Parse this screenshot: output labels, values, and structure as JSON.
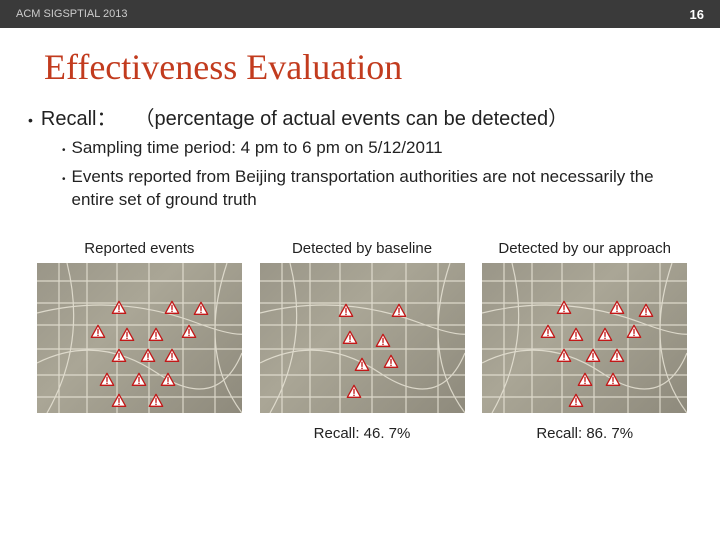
{
  "header": {
    "conference": "ACM SIGSPTIAL 2013",
    "page_number": "16"
  },
  "title": "Effectiveness Evaluation",
  "recall": {
    "label": "Recall：",
    "description": "（percentage of actual events can be detected）"
  },
  "sub_bullets": [
    "Sampling time period: 4 pm to 6 pm on 5/12/2011",
    "Events reported from Beijing transportation authorities are not necessarily the entire set of ground truth"
  ],
  "maps": [
    {
      "label": "Reported events",
      "recall_value": "",
      "markers": [
        {
          "x": 40,
          "y": 30
        },
        {
          "x": 66,
          "y": 30
        },
        {
          "x": 80,
          "y": 31
        },
        {
          "x": 30,
          "y": 46
        },
        {
          "x": 44,
          "y": 48
        },
        {
          "x": 58,
          "y": 48
        },
        {
          "x": 74,
          "y": 46
        },
        {
          "x": 40,
          "y": 62
        },
        {
          "x": 54,
          "y": 62
        },
        {
          "x": 66,
          "y": 62
        },
        {
          "x": 34,
          "y": 78
        },
        {
          "x": 50,
          "y": 78
        },
        {
          "x": 64,
          "y": 78
        },
        {
          "x": 40,
          "y": 92
        },
        {
          "x": 58,
          "y": 92
        }
      ]
    },
    {
      "label": "Detected by baseline",
      "recall_value": "Recall: 46. 7%",
      "markers": [
        {
          "x": 42,
          "y": 32
        },
        {
          "x": 68,
          "y": 32
        },
        {
          "x": 44,
          "y": 50
        },
        {
          "x": 60,
          "y": 52
        },
        {
          "x": 50,
          "y": 68
        },
        {
          "x": 64,
          "y": 66
        },
        {
          "x": 46,
          "y": 86
        }
      ]
    },
    {
      "label": "Detected by our approach",
      "recall_value": "Recall: 86. 7%",
      "markers": [
        {
          "x": 40,
          "y": 30
        },
        {
          "x": 66,
          "y": 30
        },
        {
          "x": 80,
          "y": 32
        },
        {
          "x": 32,
          "y": 46
        },
        {
          "x": 46,
          "y": 48
        },
        {
          "x": 60,
          "y": 48
        },
        {
          "x": 74,
          "y": 46
        },
        {
          "x": 40,
          "y": 62
        },
        {
          "x": 54,
          "y": 62
        },
        {
          "x": 66,
          "y": 62
        },
        {
          "x": 50,
          "y": 78
        },
        {
          "x": 64,
          "y": 78
        },
        {
          "x": 46,
          "y": 92
        }
      ]
    }
  ],
  "colors": {
    "title_color": "#c23b1e",
    "header_bg": "#3a3a3a",
    "marker_fill": "#ffffff",
    "marker_stroke": "#c21818",
    "road_color": "#e8e4d6",
    "map_bg_a": "#9a9688",
    "map_bg_b": "#8e8a7c"
  }
}
